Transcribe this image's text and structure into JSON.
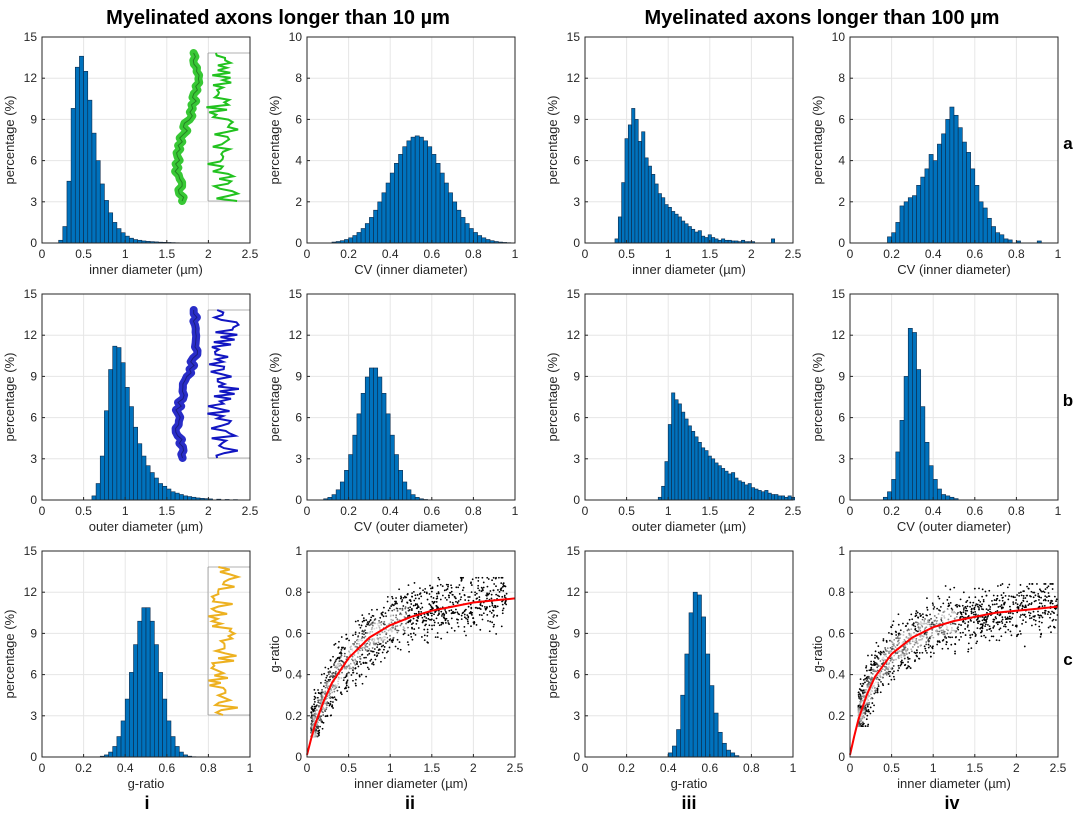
{
  "headers": {
    "left": "Myelinated axons longer than 10 µm",
    "right": "Myelinated axons longer than 100 µm"
  },
  "row_labels": [
    "a",
    "b",
    "c"
  ],
  "col_labels": [
    "i",
    "ii",
    "iii",
    "iv"
  ],
  "colors": {
    "bar_fill": "#0072BD",
    "fit_curve": "#FF0000",
    "scatter_points": "#000000",
    "grid": "#E6E6E6",
    "axon_a": "#22C21F",
    "axon_b": "#1216C2",
    "axon_c": "#EDB120"
  },
  "chart_data": [
    {
      "id": "a-i",
      "type": "histogram",
      "xlabel": "inner diameter (µm)",
      "ylabel": "percentage (%)",
      "xlim": [
        0,
        2.5
      ],
      "ylim": [
        0,
        15
      ],
      "xticks": [
        0,
        0.5,
        1,
        1.5,
        2,
        2.5
      ],
      "yticks": [
        0,
        3,
        6,
        9,
        12,
        15
      ],
      "grid": true,
      "bin_width": 0.05,
      "x": [
        0.2,
        0.25,
        0.3,
        0.35,
        0.4,
        0.45,
        0.5,
        0.55,
        0.6,
        0.65,
        0.7,
        0.75,
        0.8,
        0.85,
        0.9,
        0.95,
        1,
        1.05,
        1.1,
        1.15,
        1.2,
        1.25,
        1.3,
        1.35,
        1.4,
        1.45,
        1.5,
        1.55,
        1.6
      ],
      "values": [
        0.2,
        1.2,
        4.5,
        9.8,
        12.8,
        13.6,
        12.5,
        10.4,
        8.0,
        6.0,
        4.3,
        3.1,
        2.2,
        1.5,
        1.05,
        0.75,
        0.5,
        0.35,
        0.25,
        0.2,
        0.15,
        0.12,
        0.1,
        0.08,
        0.06,
        0.05,
        0.04,
        0.03,
        0.02
      ],
      "inset": {
        "color_key": "axon_a"
      }
    },
    {
      "id": "a-ii",
      "type": "histogram",
      "xlabel": "CV (inner diameter)",
      "ylabel": "percentage (%)",
      "xlim": [
        0,
        1
      ],
      "ylim": [
        0,
        10
      ],
      "xticks": [
        0,
        0.2,
        0.4,
        0.6,
        0.8,
        1
      ],
      "yticks": [
        0,
        2,
        4,
        6,
        8,
        10
      ],
      "grid": true,
      "bin_width": 0.02,
      "gauss": {
        "amplitude": 5.2,
        "mean": 0.52,
        "sd": 0.13,
        "from": 0.12,
        "to": 0.98
      }
    },
    {
      "id": "a-iii",
      "type": "histogram",
      "xlabel": "inner diameter (µm)",
      "ylabel": "percentage (%)",
      "xlim": [
        0,
        2.5
      ],
      "ylim": [
        0,
        15
      ],
      "xticks": [
        0,
        0.5,
        1,
        1.5,
        2,
        2.5
      ],
      "yticks": [
        0,
        3,
        6,
        9,
        12,
        15
      ],
      "grid": true,
      "bin_width": 0.04,
      "x": [
        0.36,
        0.4,
        0.44,
        0.48,
        0.52,
        0.56,
        0.6,
        0.64,
        0.68,
        0.72,
        0.76,
        0.8,
        0.84,
        0.88,
        0.92,
        0.96,
        1.0,
        1.04,
        1.08,
        1.12,
        1.16,
        1.2,
        1.24,
        1.28,
        1.32,
        1.36,
        1.4,
        1.44,
        1.48,
        1.52,
        1.56,
        1.6,
        1.64,
        1.68,
        1.72,
        1.76,
        1.8,
        1.84,
        1.88,
        1.92,
        1.96,
        2.0,
        2.24
      ],
      "values": [
        0.3,
        1.9,
        4.4,
        7.6,
        8.6,
        9.8,
        9.0,
        7.4,
        8.1,
        6.2,
        5.6,
        5.0,
        4.3,
        3.6,
        3.3,
        2.8,
        2.6,
        2.3,
        2.1,
        1.9,
        1.6,
        1.4,
        1.2,
        1.0,
        0.8,
        0.9,
        0.5,
        0.4,
        0.6,
        0.4,
        0.3,
        0.2,
        0.3,
        0.2,
        0.2,
        0.15,
        0.15,
        0.1,
        0.2,
        0.1,
        0.1,
        0.1,
        0.3
      ]
    },
    {
      "id": "a-iv",
      "type": "histogram",
      "xlabel": "CV (inner diameter)",
      "ylabel": "percentage (%)",
      "xlim": [
        0,
        1
      ],
      "ylim": [
        0,
        10
      ],
      "xticks": [
        0,
        0.2,
        0.4,
        0.6,
        0.8,
        1
      ],
      "yticks": [
        0,
        2,
        4,
        6,
        8,
        10
      ],
      "grid": true,
      "bin_width": 0.02,
      "x": [
        0.18,
        0.2,
        0.22,
        0.24,
        0.26,
        0.28,
        0.3,
        0.32,
        0.34,
        0.36,
        0.38,
        0.4,
        0.42,
        0.44,
        0.46,
        0.48,
        0.5,
        0.52,
        0.54,
        0.56,
        0.58,
        0.6,
        0.62,
        0.64,
        0.66,
        0.68,
        0.7,
        0.72,
        0.74,
        0.76,
        0.8,
        0.9
      ],
      "values": [
        0.3,
        0.5,
        1.0,
        1.8,
        2.0,
        2.2,
        2.3,
        2.8,
        3.2,
        3.6,
        4.3,
        4.0,
        4.8,
        5.3,
        6.0,
        6.6,
        6.2,
        5.6,
        4.9,
        4.4,
        3.6,
        2.8,
        2.0,
        1.7,
        1.2,
        0.8,
        0.5,
        0.4,
        0.2,
        0.15,
        0.1,
        0.1
      ]
    },
    {
      "id": "b-i",
      "type": "histogram",
      "xlabel": "outer diameter (µm)",
      "ylabel": "percentage (%)",
      "xlim": [
        0,
        2.5
      ],
      "ylim": [
        0,
        15
      ],
      "xticks": [
        0,
        0.5,
        1,
        1.5,
        2,
        2.5
      ],
      "yticks": [
        0,
        3,
        6,
        9,
        12,
        15
      ],
      "grid": true,
      "bin_width": 0.05,
      "x": [
        0.6,
        0.65,
        0.7,
        0.75,
        0.8,
        0.85,
        0.9,
        0.95,
        1,
        1.05,
        1.1,
        1.15,
        1.2,
        1.25,
        1.3,
        1.35,
        1.4,
        1.45,
        1.5,
        1.55,
        1.6,
        1.65,
        1.7,
        1.75,
        1.8,
        1.85,
        1.9,
        1.95,
        2.0,
        2.1,
        2.2,
        2.3
      ],
      "values": [
        0.3,
        1.2,
        3.2,
        6.5,
        9.5,
        11.2,
        11.1,
        10.0,
        8.2,
        6.8,
        5.3,
        4.1,
        3.2,
        2.5,
        2.0,
        1.6,
        1.2,
        1.0,
        0.8,
        0.6,
        0.5,
        0.4,
        0.3,
        0.25,
        0.2,
        0.15,
        0.12,
        0.1,
        0.08,
        0.06,
        0.04,
        0.03
      ],
      "inset": {
        "color_key": "axon_b"
      }
    },
    {
      "id": "b-ii",
      "type": "histogram",
      "xlabel": "CV (outer diameter)",
      "ylabel": "percentage (%)",
      "xlim": [
        0,
        1
      ],
      "ylim": [
        0,
        15
      ],
      "xticks": [
        0,
        0.2,
        0.4,
        0.6,
        0.8,
        1
      ],
      "yticks": [
        0,
        3,
        6,
        9,
        12,
        15
      ],
      "grid": true,
      "bin_width": 0.02,
      "gauss": {
        "amplitude": 9.7,
        "mean": 0.31,
        "sd": 0.075,
        "from": 0.08,
        "to": 0.6
      }
    },
    {
      "id": "b-iii",
      "type": "histogram",
      "xlabel": "outer diameter (µm)",
      "ylabel": "percentage (%)",
      "xlim": [
        0,
        2.5
      ],
      "ylim": [
        0,
        15
      ],
      "xticks": [
        0,
        0.5,
        1,
        1.5,
        2,
        2.5
      ],
      "yticks": [
        0,
        3,
        6,
        9,
        12,
        15
      ],
      "grid": true,
      "bin_width": 0.04,
      "x": [
        0.88,
        0.92,
        0.96,
        1.0,
        1.04,
        1.08,
        1.12,
        1.16,
        1.2,
        1.24,
        1.28,
        1.32,
        1.36,
        1.4,
        1.44,
        1.48,
        1.52,
        1.56,
        1.6,
        1.64,
        1.68,
        1.72,
        1.76,
        1.8,
        1.84,
        1.88,
        1.92,
        1.96,
        2.0,
        2.04,
        2.08,
        2.12,
        2.16,
        2.2,
        2.24,
        2.28,
        2.32,
        2.36,
        2.4,
        2.44,
        2.48
      ],
      "values": [
        0.2,
        1.0,
        2.8,
        5.5,
        7.8,
        7.3,
        7.0,
        6.4,
        5.9,
        5.4,
        5.0,
        4.6,
        4.2,
        3.8,
        3.6,
        3.2,
        3.0,
        2.7,
        2.5,
        2.3,
        2.1,
        1.9,
        2.0,
        1.6,
        1.4,
        1.3,
        1.1,
        1.2,
        0.9,
        0.8,
        0.7,
        0.6,
        0.7,
        0.5,
        0.4,
        0.4,
        0.3,
        0.3,
        0.2,
        0.3,
        0.2
      ]
    },
    {
      "id": "b-iv",
      "type": "histogram",
      "xlabel": "CV (outer diameter)",
      "ylabel": "percentage (%)",
      "xlim": [
        0,
        1
      ],
      "ylim": [
        0,
        15
      ],
      "xticks": [
        0,
        0.2,
        0.4,
        0.6,
        0.8,
        1
      ],
      "yticks": [
        0,
        3,
        6,
        9,
        12,
        15
      ],
      "grid": true,
      "bin_width": 0.02,
      "x": [
        0.16,
        0.18,
        0.2,
        0.22,
        0.24,
        0.26,
        0.28,
        0.3,
        0.32,
        0.34,
        0.36,
        0.38,
        0.4,
        0.42,
        0.44,
        0.46,
        0.48,
        0.5
      ],
      "values": [
        0.2,
        0.6,
        1.5,
        3.5,
        5.8,
        9.0,
        12.5,
        12.2,
        9.5,
        6.8,
        4.2,
        2.5,
        1.5,
        0.8,
        0.4,
        0.3,
        0.2,
        0.1
      ]
    },
    {
      "id": "c-i",
      "type": "histogram",
      "xlabel": "g-ratio",
      "ylabel": "percentage (%)",
      "xlim": [
        0,
        1
      ],
      "ylim": [
        0,
        15
      ],
      "xticks": [
        0,
        0.2,
        0.4,
        0.6,
        0.8,
        1
      ],
      "yticks": [
        0,
        3,
        6,
        9,
        12,
        15
      ],
      "grid": true,
      "bin_width": 0.02,
      "gauss": {
        "amplitude": 11.0,
        "mean": 0.49,
        "sd": 0.065,
        "from": 0.28,
        "to": 0.72
      },
      "inset": {
        "color_key": "axon_c"
      }
    },
    {
      "id": "c-ii",
      "type": "scatter",
      "xlabel": "inner diameter (µm)",
      "ylabel": "g-ratio",
      "xlim": [
        0,
        2.5
      ],
      "ylim": [
        0,
        1
      ],
      "xticks": [
        0,
        0.5,
        1,
        1.5,
        2,
        2.5
      ],
      "yticks": [
        0,
        0.2,
        0.4,
        0.6,
        0.8,
        1
      ],
      "grid": true,
      "fit_curve": {
        "x": [
          0,
          0.05,
          0.1,
          0.2,
          0.3,
          0.5,
          0.75,
          1.0,
          1.25,
          1.5,
          1.75,
          2.0,
          2.25,
          2.5
        ],
        "y": [
          0.01,
          0.09,
          0.16,
          0.27,
          0.36,
          0.48,
          0.58,
          0.64,
          0.68,
          0.71,
          0.73,
          0.75,
          0.76,
          0.77
        ]
      },
      "point_cloud": {
        "x_range": [
          0.05,
          2.4
        ],
        "y_range": [
          0.1,
          0.85
        ],
        "center_x": 0.55,
        "center_y": 0.55
      }
    },
    {
      "id": "c-iii",
      "type": "histogram",
      "xlabel": "g-ratio",
      "ylabel": "percentage (%)",
      "xlim": [
        0,
        1
      ],
      "ylim": [
        0,
        15
      ],
      "xticks": [
        0,
        0.2,
        0.4,
        0.6,
        0.8,
        1
      ],
      "yticks": [
        0,
        3,
        6,
        9,
        12,
        15
      ],
      "grid": true,
      "bin_width": 0.02,
      "x": [
        0.4,
        0.42,
        0.44,
        0.46,
        0.48,
        0.5,
        0.52,
        0.54,
        0.56,
        0.58,
        0.6,
        0.62,
        0.64,
        0.66,
        0.68,
        0.7,
        0.72
      ],
      "values": [
        0.3,
        0.8,
        2.0,
        4.5,
        7.5,
        10.5,
        12.0,
        11.8,
        10.2,
        7.5,
        5.2,
        3.2,
        1.8,
        1.0,
        0.5,
        0.3,
        0.1
      ]
    },
    {
      "id": "c-iv",
      "type": "scatter",
      "xlabel": "inner diameter (µm)",
      "ylabel": "g-ratio",
      "xlim": [
        0,
        2.5
      ],
      "ylim": [
        0,
        1
      ],
      "xticks": [
        0,
        0.5,
        1,
        1.5,
        2,
        2.5
      ],
      "yticks": [
        0,
        0.2,
        0.4,
        0.6,
        0.8,
        1
      ],
      "grid": true,
      "fit_curve": {
        "x": [
          0,
          0.05,
          0.1,
          0.2,
          0.3,
          0.5,
          0.75,
          1.0,
          1.25,
          1.5,
          1.75,
          2.0,
          2.25,
          2.5
        ],
        "y": [
          0.01,
          0.1,
          0.18,
          0.3,
          0.39,
          0.5,
          0.58,
          0.63,
          0.66,
          0.68,
          0.7,
          0.71,
          0.72,
          0.73
        ]
      },
      "point_cloud": {
        "x_range": [
          0.1,
          2.5
        ],
        "y_range": [
          0.15,
          0.82
        ],
        "center_x": 0.65,
        "center_y": 0.6
      }
    }
  ]
}
